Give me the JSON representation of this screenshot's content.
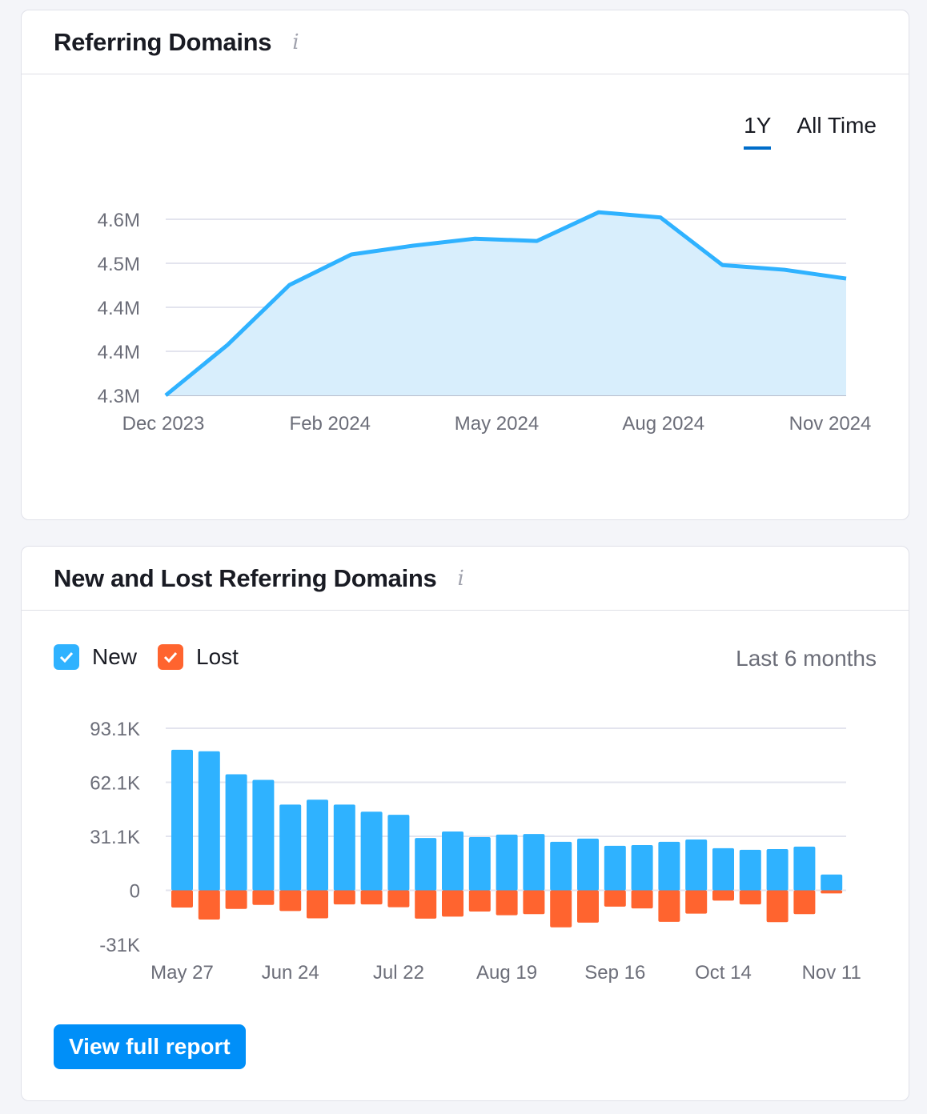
{
  "colors": {
    "line": "#2fb2ff",
    "area": "#d8eefc",
    "new": "#2fb2ff",
    "lost": "#ff642f",
    "accent": "#006dca",
    "button": "#008ff8"
  },
  "card1": {
    "title": "Referring Domains",
    "info_icon": "info-icon",
    "tabs": [
      {
        "label": "1Y",
        "active": true
      },
      {
        "label": "All Time",
        "active": false
      }
    ]
  },
  "card2": {
    "title": "New and Lost Referring Domains",
    "info_icon": "info-icon",
    "legend": [
      {
        "label": "New",
        "checked": true
      },
      {
        "label": "Lost",
        "checked": true
      }
    ],
    "period": "Last 6 months",
    "button": "View full report"
  },
  "chart_data": [
    {
      "type": "area",
      "x": [
        "Dec 2023",
        "Jan 2024",
        "Feb 2024",
        "Mar 2024",
        "Apr 2024",
        "May 2024",
        "Jun 2024",
        "Jul 2024",
        "Aug 2024",
        "Sep 2024",
        "Oct 2024",
        "Nov 2024"
      ],
      "values": [
        4.3,
        4.386,
        4.488,
        4.54,
        4.555,
        4.567,
        4.563,
        4.612,
        4.603,
        4.522,
        4.514,
        4.499
      ],
      "unit": "M",
      "ylim": [
        4.3,
        4.6
      ],
      "y_ticks": [
        {
          "v": 4.6,
          "label": "4.6M"
        },
        {
          "v": 4.525,
          "label": "4.5M"
        },
        {
          "v": 4.45,
          "label": "4.4M"
        },
        {
          "v": 4.375,
          "label": "4.4M"
        },
        {
          "v": 4.3,
          "label": "4.3M"
        }
      ],
      "x_ticks": [
        "Dec 2023",
        "Feb 2024",
        "May 2024",
        "Aug 2024",
        "Nov 2024"
      ],
      "grid": true
    },
    {
      "type": "bar",
      "categories": [
        "May 27",
        "Jun 3",
        "Jun 10",
        "Jun 17",
        "Jun 24",
        "Jul 1",
        "Jul 8",
        "Jul 15",
        "Jul 22",
        "Jul 29",
        "Aug 5",
        "Aug 12",
        "Aug 19",
        "Aug 26",
        "Sep 2",
        "Sep 9",
        "Sep 16",
        "Sep 23",
        "Sep 30",
        "Oct 7",
        "Oct 14",
        "Oct 21",
        "Oct 28",
        "Nov 4",
        "Nov 11"
      ],
      "series": [
        {
          "name": "New",
          "values": [
            80.8,
            79.9,
            66.7,
            63.5,
            49.3,
            52.1,
            49.3,
            45.2,
            43.4,
            30.1,
            33.8,
            30.6,
            32.0,
            32.4,
            27.9,
            29.7,
            25.6,
            26.0,
            27.9,
            29.2,
            24.2,
            23.3,
            23.7,
            25.1,
            9.1
          ]
        },
        {
          "name": "Lost",
          "values": [
            -9.9,
            -16.8,
            -10.7,
            -8.4,
            -11.9,
            -16.1,
            -8.1,
            -8.1,
            -9.7,
            -16.3,
            -15.1,
            -12.2,
            -14.3,
            -13.7,
            -21.3,
            -18.6,
            -9.4,
            -10.4,
            -18.1,
            -13.4,
            -5.9,
            -8.1,
            -18.3,
            -13.7,
            -1.8
          ]
        }
      ],
      "unit": "K",
      "ylim": [
        -31.05,
        93.15
      ],
      "y_ticks": [
        {
          "v": 93.15,
          "label": "93.1K"
        },
        {
          "v": 62.1,
          "label": "62.1K"
        },
        {
          "v": 31.05,
          "label": "31.1K"
        },
        {
          "v": 0,
          "label": "0"
        },
        {
          "v": -31.05,
          "label": "-31K"
        }
      ],
      "x_ticks": [
        "May 27",
        "Jun 24",
        "Jul 22",
        "Aug 19",
        "Sep 16",
        "Oct 14",
        "Nov 11"
      ],
      "grid": true
    }
  ]
}
